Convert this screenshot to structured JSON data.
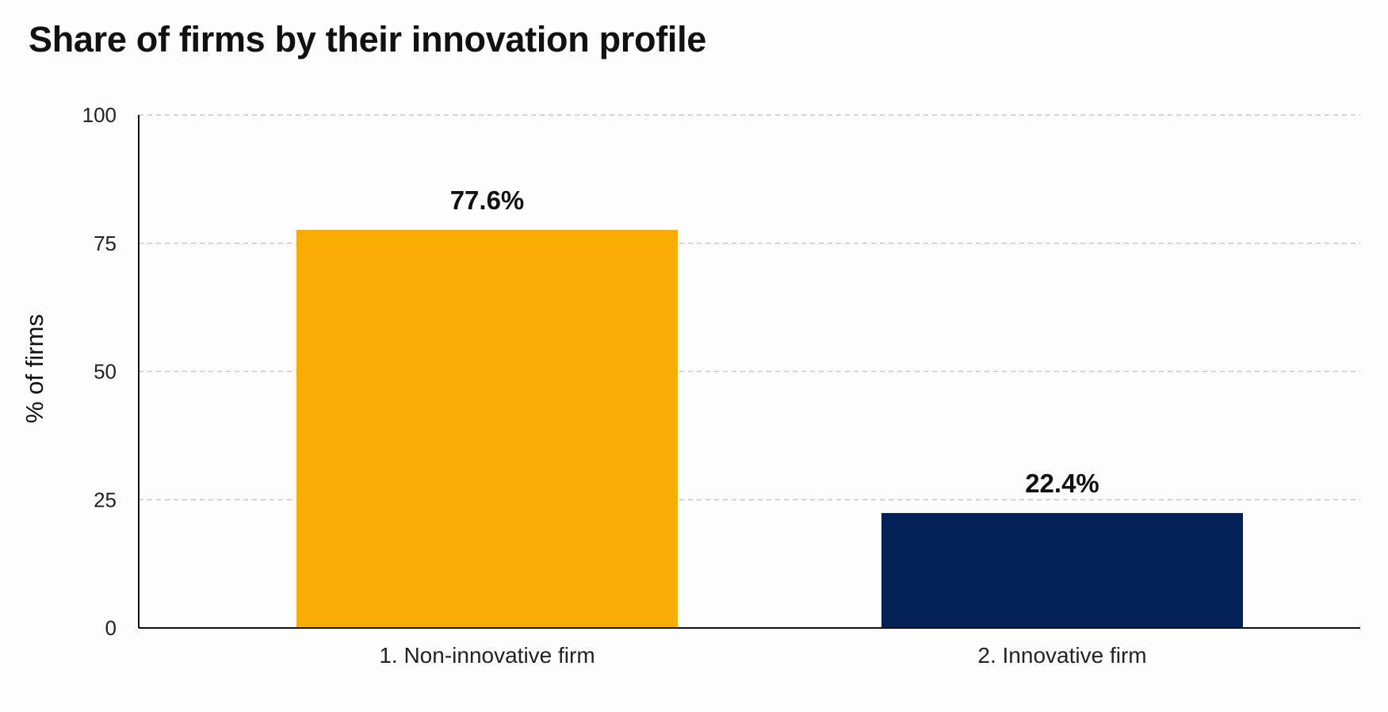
{
  "chart": {
    "title": "Share of firms by their innovation profile",
    "ylabel": "% of firms"
  },
  "chart_data": {
    "type": "bar",
    "title": "Share of firms by their innovation profile",
    "xlabel": "",
    "ylabel": "% of firms",
    "categories": [
      "1. Non-innovative firm",
      "2. Innovative firm"
    ],
    "values": [
      77.6,
      22.4
    ],
    "data_labels": [
      "77.6%",
      "22.4%"
    ],
    "bar_colors": [
      "#F8AC05",
      "#032157"
    ],
    "ylim": [
      0,
      100
    ],
    "yticks": [
      0,
      25,
      50,
      75,
      100
    ],
    "ytick_labels": [
      "0",
      "25",
      "50",
      "75",
      "100"
    ],
    "grid": true,
    "grid_style": "dashed-horizontal",
    "legend": "none"
  }
}
